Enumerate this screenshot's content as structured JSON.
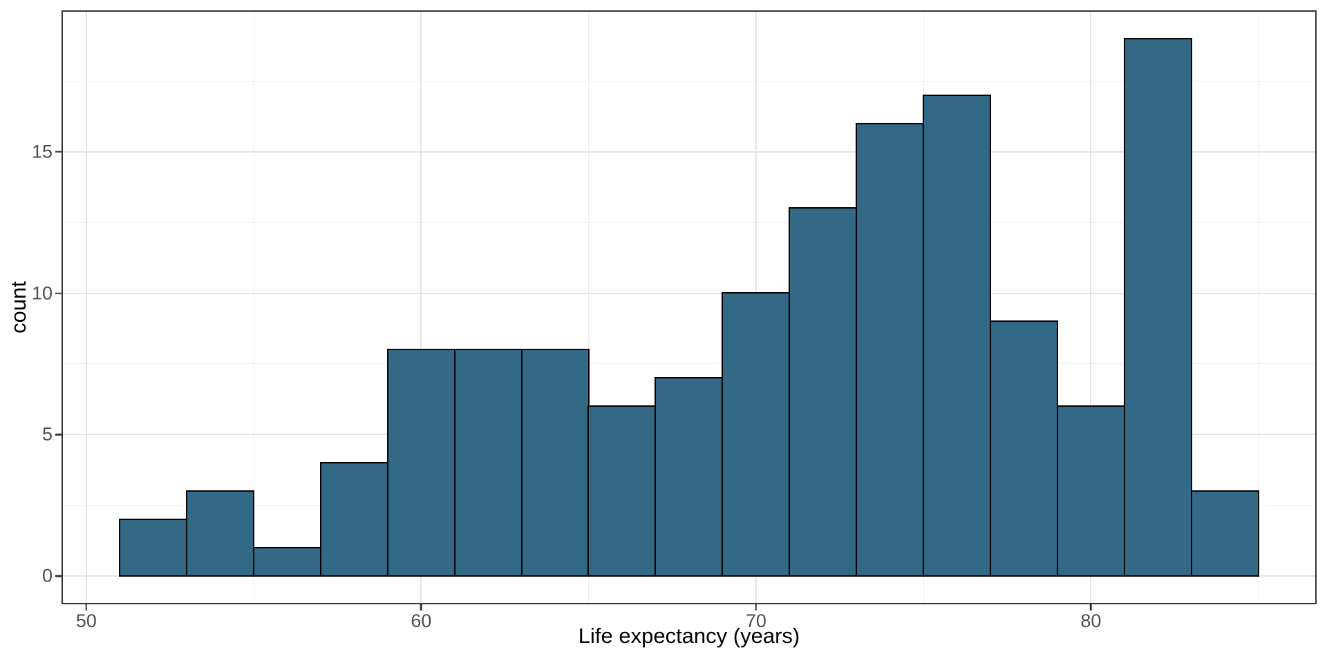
{
  "figure": {
    "background": "#ffffff"
  },
  "panel": {
    "background": "#ffffff",
    "border_color": "#333333",
    "grid_major_color": "#e2e2e2",
    "grid_minor_color": "#ededed"
  },
  "axes": {
    "tick_mark_color": "#333333",
    "tick_label_color": "#4d4d4d",
    "title_color": "#000000"
  },
  "chart_data": {
    "type": "bar",
    "subtype": "histogram",
    "title": "",
    "xlabel": "Life expectancy (years)",
    "ylabel": "count",
    "bin_edges": [
      51,
      53,
      55,
      57,
      59,
      61,
      63,
      65,
      67,
      69,
      71,
      73,
      75,
      77,
      79,
      81,
      83,
      85
    ],
    "categories": [
      "51-53",
      "53-55",
      "55-57",
      "57-59",
      "59-61",
      "61-63",
      "63-65",
      "65-67",
      "67-69",
      "69-71",
      "71-73",
      "73-75",
      "75-77",
      "77-79",
      "79-81",
      "81-83",
      "83-85"
    ],
    "values": [
      2,
      3,
      1,
      4,
      8,
      8,
      8,
      6,
      7,
      10,
      13,
      16,
      17,
      9,
      6,
      19,
      3
    ],
    "x_ticks": [
      50,
      60,
      70,
      80
    ],
    "x_tick_labels": [
      "50",
      "60",
      "70",
      "80"
    ],
    "x_minor_ticks": [
      55,
      65,
      75,
      85
    ],
    "y_ticks": [
      0,
      5,
      10,
      15
    ],
    "y_tick_labels": [
      "0",
      "5",
      "10",
      "15"
    ],
    "y_minor_ticks": [
      2.5,
      7.5,
      12.5,
      17.5
    ],
    "xlim": [
      49.3,
      86.7
    ],
    "ylim": [
      -0.95,
      19.95
    ],
    "grid": "on",
    "legend": "none",
    "bar_fill": "#336987",
    "bar_stroke": "#000000"
  }
}
